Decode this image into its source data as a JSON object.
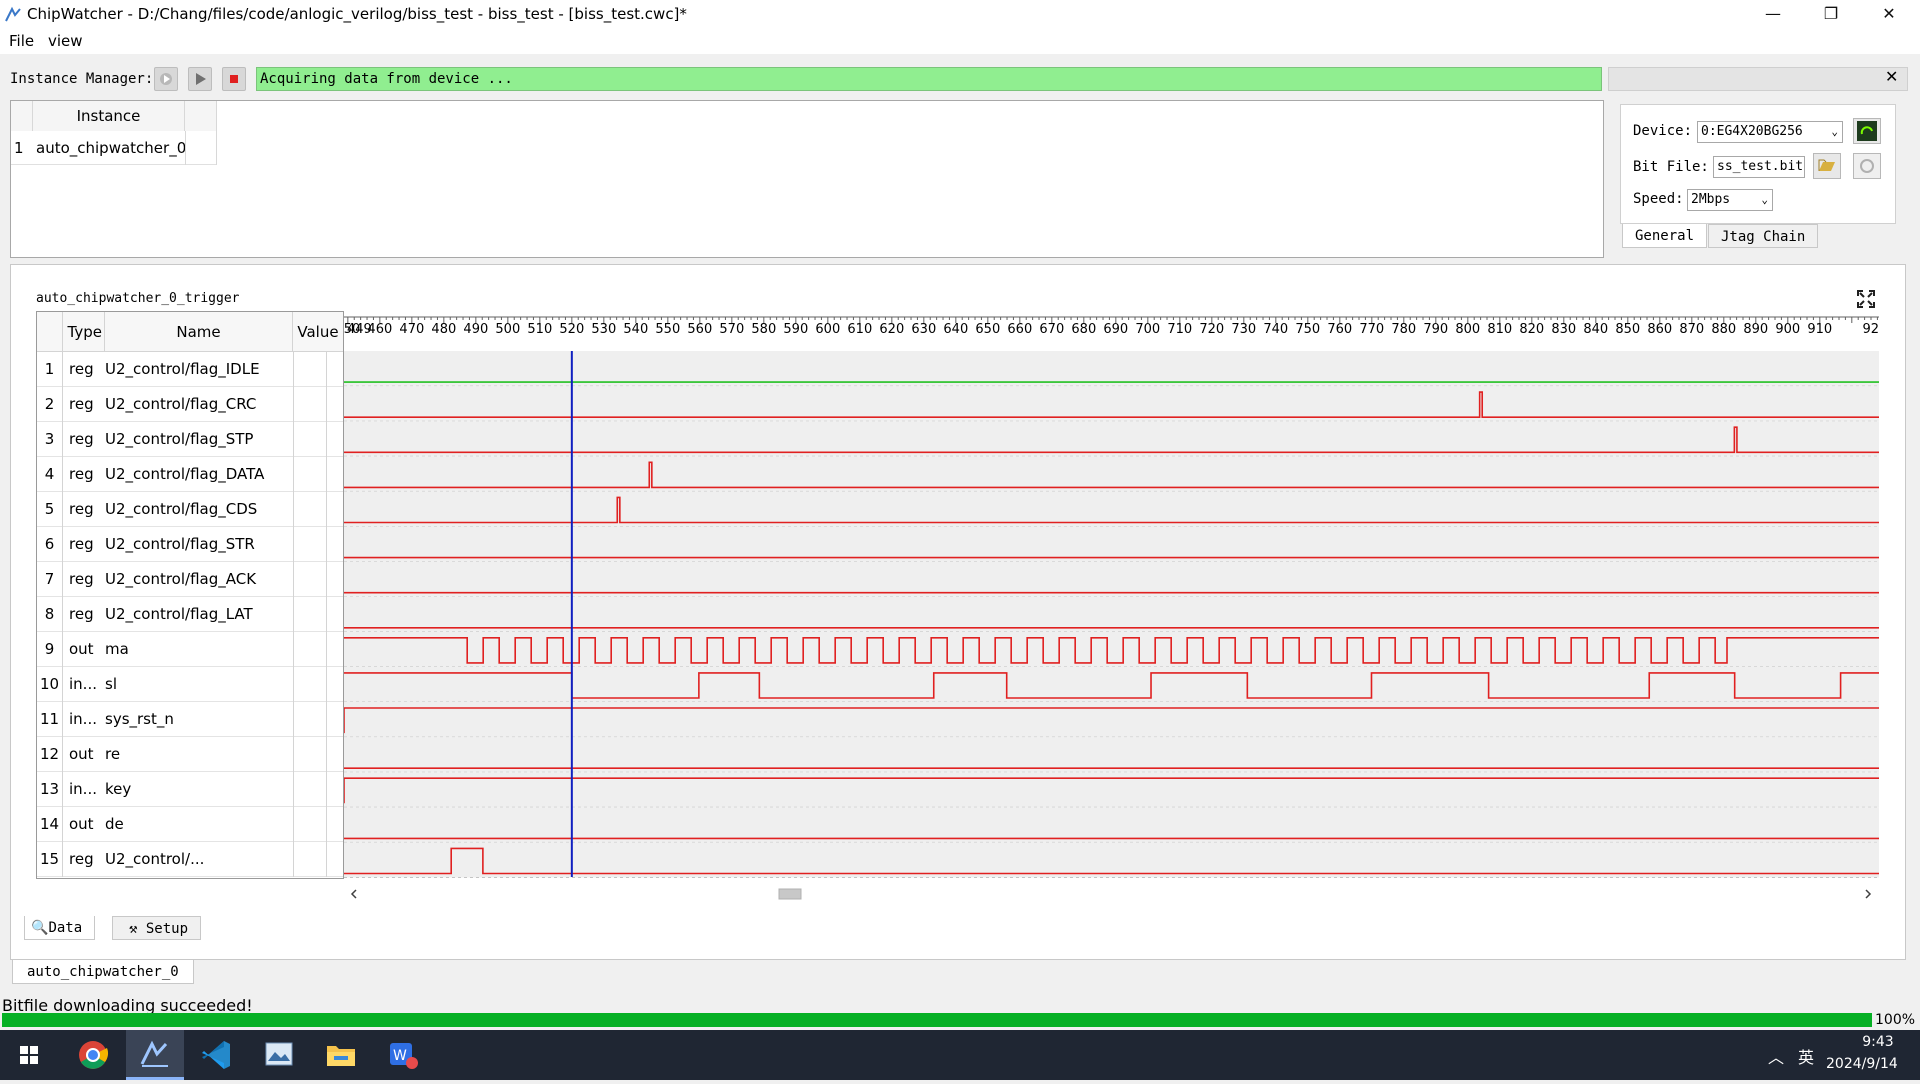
{
  "window": {
    "title": "ChipWatcher - D:/Chang/files/code/anlogic_verilog/biss_test - biss_test - [biss_test.cwc]*",
    "minimize": "—",
    "restore": "❐",
    "close": "✕"
  },
  "menu": [
    "File",
    "view"
  ],
  "instance_manager": {
    "label": "Instance Manager:",
    "status": "Acquiring data from device ...",
    "close": "✕",
    "status_color": "#90ee90"
  },
  "instance_table": {
    "header": "Instance",
    "rows": [
      {
        "num": "1",
        "name": "auto_chipwatcher_0"
      }
    ]
  },
  "device": {
    "device_label": "Device:",
    "device_value": "0:EG4X20BG256",
    "bitfile_label": "Bit File:",
    "bitfile_value": "ss_test.bit",
    "speed_label": "Speed:",
    "speed_value": "2Mbps",
    "tabs": [
      "General",
      "Jtag Chain"
    ]
  },
  "trigger": {
    "title": "auto_chipwatcher_0_trigger",
    "headers": {
      "type": "Type",
      "name": "Name",
      "value": "Value"
    }
  },
  "signals": [
    {
      "num": "1",
      "type": "reg",
      "name": "U2_control/flag_IDLE"
    },
    {
      "num": "2",
      "type": "reg",
      "name": "U2_control/flag_CRC"
    },
    {
      "num": "3",
      "type": "reg",
      "name": "U2_control/flag_STP"
    },
    {
      "num": "4",
      "type": "reg",
      "name": "U2_control/flag_DATA"
    },
    {
      "num": "5",
      "type": "reg",
      "name": "U2_control/flag_CDS"
    },
    {
      "num": "6",
      "type": "reg",
      "name": "U2_control/flag_STR"
    },
    {
      "num": "7",
      "type": "reg",
      "name": "U2_control/flag_ACK"
    },
    {
      "num": "8",
      "type": "reg",
      "name": "U2_control/flag_LAT"
    },
    {
      "num": "9",
      "type": "out",
      "name": "ma"
    },
    {
      "num": "10",
      "type": "in...",
      "name": "sl"
    },
    {
      "num": "11",
      "type": "in...",
      "name": "sys_rst_n"
    },
    {
      "num": "12",
      "type": "out",
      "name": "re"
    },
    {
      "num": "13",
      "type": "in...",
      "name": "key"
    },
    {
      "num": "14",
      "type": "out",
      "name": "de"
    },
    {
      "num": "15",
      "type": "reg",
      "name": "U2_control/..."
    }
  ],
  "waveform": {
    "ticks": [
      450,
      460,
      470,
      480,
      490,
      500,
      510,
      520,
      530,
      540,
      550,
      560,
      570,
      580,
      590,
      600,
      610,
      620,
      630,
      640,
      650,
      660,
      670,
      680,
      690,
      700,
      710,
      720,
      730,
      740,
      750,
      760,
      770,
      780,
      790,
      800,
      810,
      820,
      830,
      840,
      850,
      860,
      870,
      880,
      890,
      900,
      910
    ],
    "first_tick_label": "449",
    "last_tick_label": "92",
    "time_range": [
      448.8,
      928.5
    ],
    "cursor_time": 520,
    "signal_color": "#e02020",
    "idle_color": "#22c022",
    "cursor_color": "#1020c0",
    "traces": [
      {
        "edges": [],
        "init": 1,
        "color": "green"
      },
      {
        "pulses": [
          [
            803.7,
            804.5
          ]
        ]
      },
      {
        "pulses": [
          [
            883.3,
            884.1
          ]
        ]
      },
      {
        "pulses": [
          [
            544.2,
            545.0
          ]
        ]
      },
      {
        "pulses": [
          [
            534.2,
            535.0
          ]
        ]
      },
      {
        "pulses": []
      },
      {
        "pulses": []
      },
      {
        "pulses": []
      },
      {
        "clock": {
          "start": 487.3,
          "end": 881.0,
          "period": 10.0
        }
      },
      {
        "pulses": [
          [
            519.8,
            539.8
          ],
          [
            559.7,
            578.6
          ],
          [
            633.1,
            655.9
          ],
          [
            701.0,
            731.1
          ],
          [
            769.9,
            806.5
          ],
          [
            856.7,
            883.4
          ],
          [
            916.5,
            928.5
          ]
        ],
        "init": 0
      },
      {
        "pulses": [
          [
            448.8,
            928.5
          ]
        ]
      },
      {
        "pulses": []
      },
      {
        "pulses": [
          [
            448.8,
            928.5
          ]
        ]
      },
      {
        "pulses": []
      },
      {
        "pulses": [
          [
            482.3,
            492.2
          ]
        ]
      }
    ]
  },
  "bottom_tabs": [
    "Data",
    "Setup"
  ],
  "instance_tab": "auto_chipwatcher_0",
  "status_message": "Bitfile downloading succeeded!",
  "progress": {
    "value": 100,
    "label": "100%"
  },
  "taskbar": {
    "apps": [
      "start-icon",
      "chrome-icon",
      "chipwatcher-icon",
      "vscode-icon",
      "photos-icon",
      "file-explorer-icon",
      "wps-icon"
    ],
    "tray_up": "︿",
    "ime": "英",
    "time": "9:43",
    "date": "2024/9/14"
  }
}
